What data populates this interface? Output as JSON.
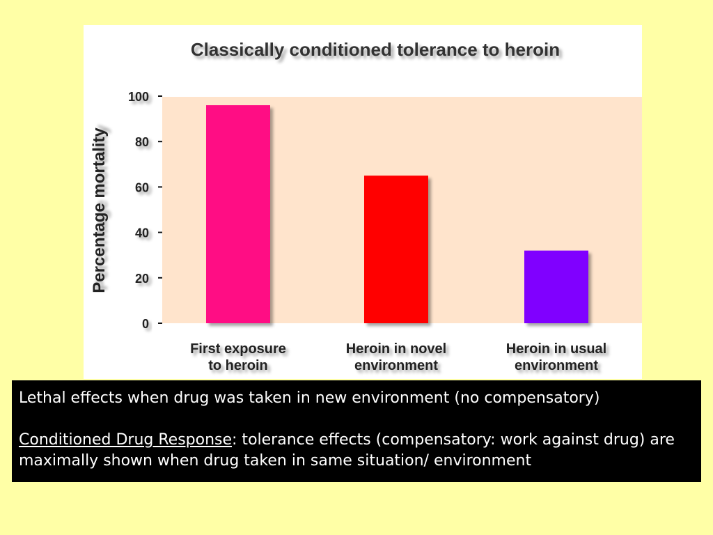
{
  "chart_data": {
    "type": "bar",
    "title": "Classically conditioned tolerance to heroin",
    "ylabel": "Percentage mortality",
    "xlabel": "",
    "ylim": [
      0,
      100
    ],
    "yticks": [
      0,
      20,
      40,
      60,
      80,
      100
    ],
    "categories": [
      [
        "First exposure",
        "to heroin"
      ],
      [
        "Heroin in novel",
        "environment"
      ],
      [
        "Heroin in usual",
        "environment"
      ]
    ],
    "values": [
      96,
      65,
      32
    ],
    "colors": [
      "#FF0A84",
      "#FF0000",
      "#8000FF"
    ],
    "plot_background": "#FFE4CC",
    "grid": false,
    "legend": "none"
  },
  "caption": {
    "line1": "Lethal effects when drug was taken in new environment (no compensatory)",
    "term": "Conditioned Drug Response",
    "definition": ": tolerance effects (compensatory: work against drug) are maximally shown when drug taken in same situation/ environment"
  },
  "colors": {
    "slide_background": "#FFFFA6",
    "caption_background": "#000000",
    "caption_text": "#FFFFFF"
  }
}
